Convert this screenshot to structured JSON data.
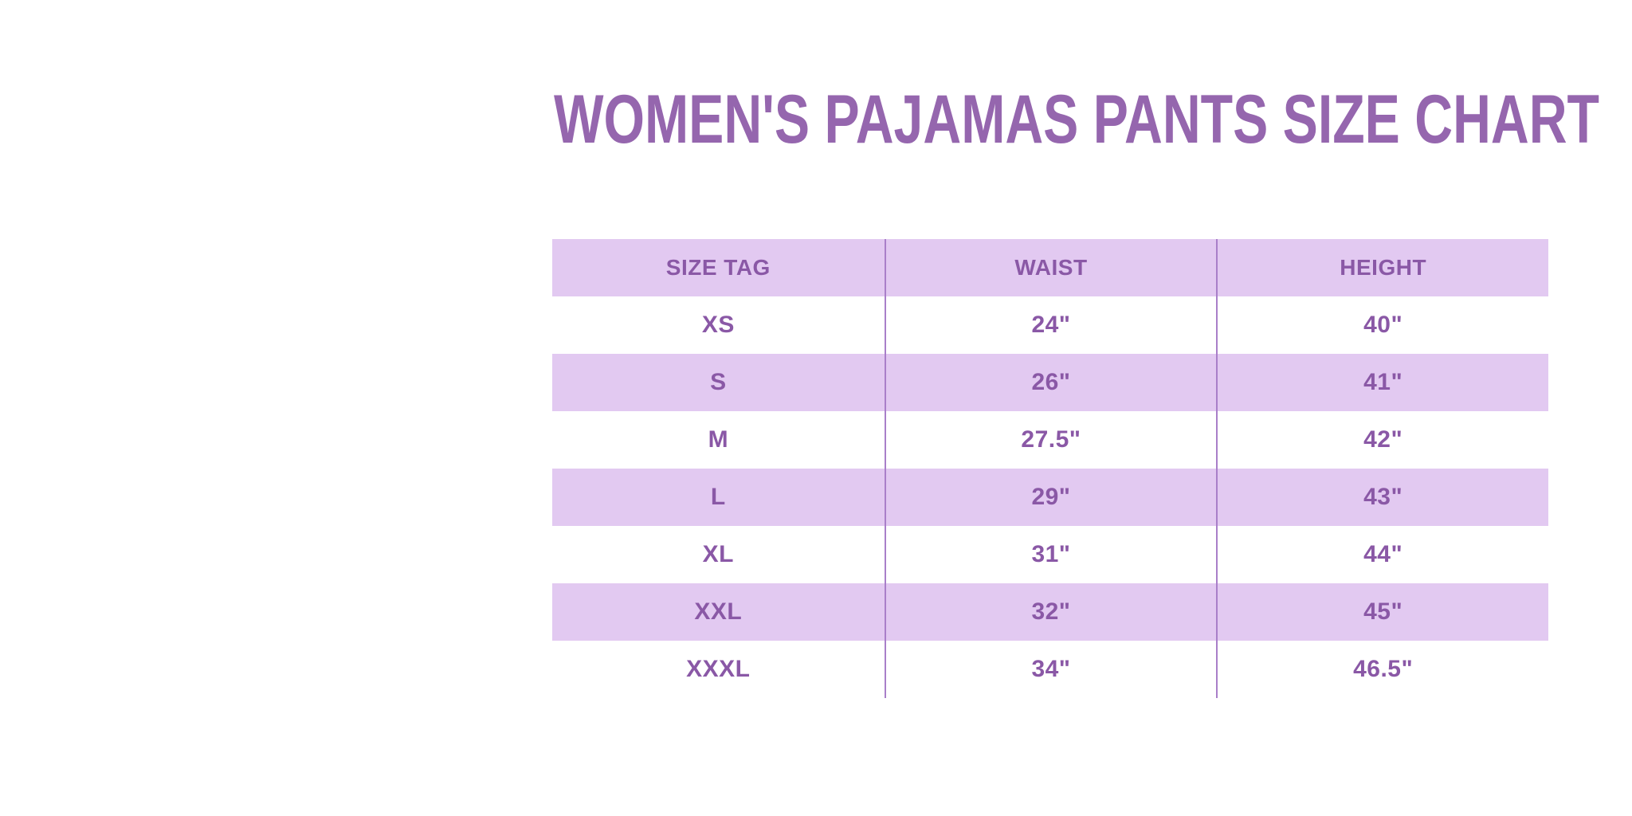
{
  "title": "WOMEN'S PAJAMAS PANTS SIZE CHART",
  "chart_data": {
    "type": "table",
    "title": "WOMEN'S PAJAMAS PANTS SIZE CHART",
    "columns": [
      "SIZE TAG",
      "WAIST",
      "HEIGHT"
    ],
    "rows": [
      {
        "size_tag": "XS",
        "waist": "24\"",
        "height": "40\""
      },
      {
        "size_tag": "S",
        "waist": "26\"",
        "height": "41\""
      },
      {
        "size_tag": "M",
        "waist": "27.5\"",
        "height": "42\""
      },
      {
        "size_tag": "L",
        "waist": "29\"",
        "height": "43\""
      },
      {
        "size_tag": "XL",
        "waist": "31\"",
        "height": "44\""
      },
      {
        "size_tag": "XXL",
        "waist": "32\"",
        "height": "45\""
      },
      {
        "size_tag": "XXXL",
        "waist": "34\"",
        "height": "46.5\""
      }
    ],
    "layout": {
      "striped_rows": true,
      "stripe_pattern": "header and alternating rows shaded",
      "column_dividers": true
    }
  },
  "colors": {
    "background": "#ffffff",
    "title": "#9566ae",
    "text": "#8a58a6",
    "band": "#e2c9f1",
    "divider": "#a97fc9"
  }
}
